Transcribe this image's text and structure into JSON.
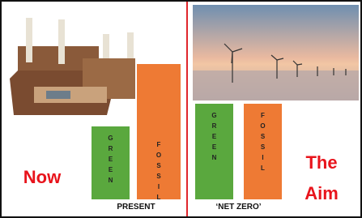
{
  "panels": [
    {
      "label_lines": [
        "Now"
      ],
      "caption": "PRESENT",
      "bars": [
        "GREEN",
        "FOSSIL"
      ]
    },
    {
      "label_lines": [
        "The",
        "Aim"
      ],
      "caption": "‘NET ZERO’",
      "bars": [
        "GREEN",
        "FOSSIL"
      ]
    }
  ]
}
